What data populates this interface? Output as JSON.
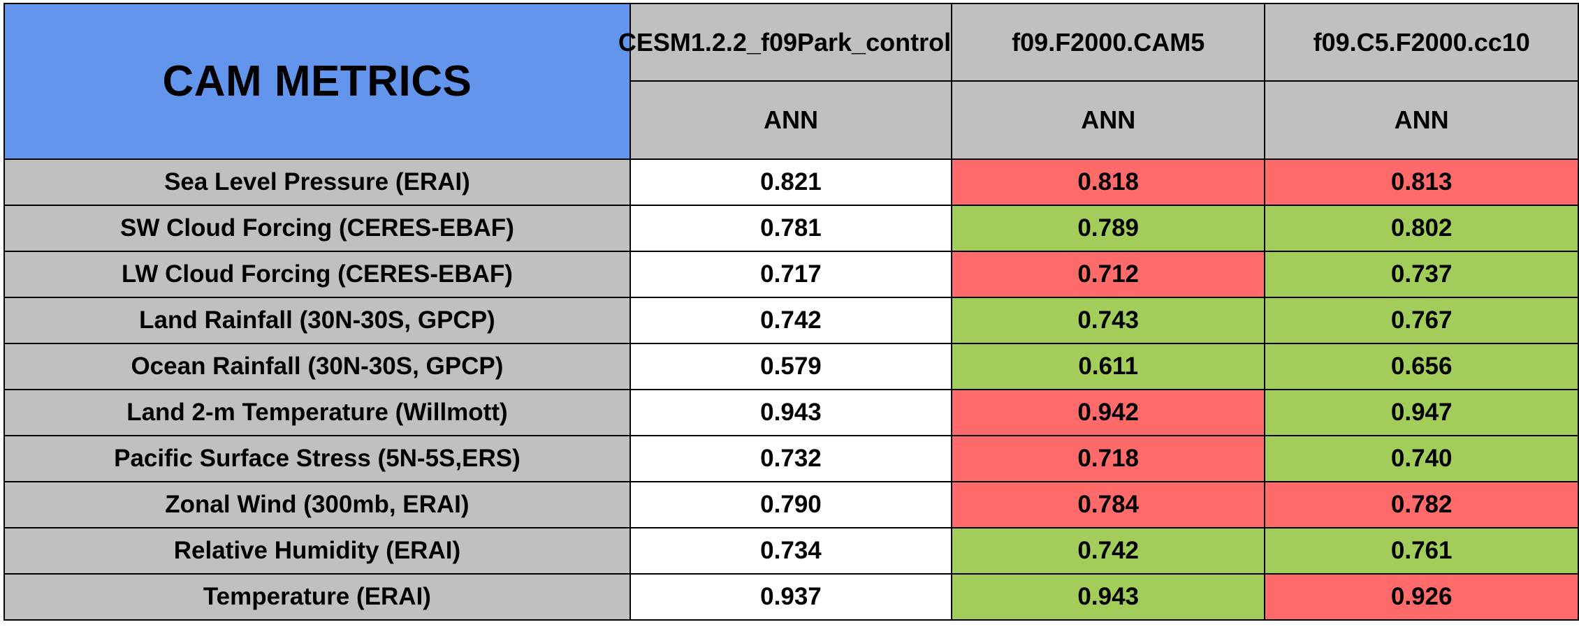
{
  "chart_data": {
    "type": "table",
    "title": "CAM METRICS",
    "colors": {
      "title_bg": "#6495ec",
      "header_bg": "#c0c0c0",
      "label_bg": "#c0c0c0",
      "baseline_bg": "#ffffff",
      "better_bg": "#a2cd5a",
      "worse_bg": "#ff6a6a"
    },
    "columns": [
      {
        "case": "CESM1.2.2_f09Park_control",
        "season": "ANN"
      },
      {
        "case": "f09.F2000.CAM5",
        "season": "ANN"
      },
      {
        "case": "f09.C5.F2000.cc10",
        "season": "ANN"
      }
    ],
    "rows": [
      {
        "label": "Sea Level Pressure (ERAI)",
        "values": [
          "0.821",
          "0.818",
          "0.813"
        ],
        "status": [
          "base",
          "worse",
          "worse"
        ]
      },
      {
        "label": "SW Cloud Forcing (CERES-EBAF)",
        "values": [
          "0.781",
          "0.789",
          "0.802"
        ],
        "status": [
          "base",
          "better",
          "better"
        ]
      },
      {
        "label": "LW Cloud Forcing (CERES-EBAF)",
        "values": [
          "0.717",
          "0.712",
          "0.737"
        ],
        "status": [
          "base",
          "worse",
          "better"
        ]
      },
      {
        "label": "Land Rainfall (30N-30S, GPCP)",
        "values": [
          "0.742",
          "0.743",
          "0.767"
        ],
        "status": [
          "base",
          "better",
          "better"
        ]
      },
      {
        "label": "Ocean Rainfall (30N-30S, GPCP)",
        "values": [
          "0.579",
          "0.611",
          "0.656"
        ],
        "status": [
          "base",
          "better",
          "better"
        ]
      },
      {
        "label": "Land 2-m Temperature (Willmott)",
        "values": [
          "0.943",
          "0.942",
          "0.947"
        ],
        "status": [
          "base",
          "worse",
          "better"
        ]
      },
      {
        "label": "Pacific Surface Stress (5N-5S,ERS)",
        "values": [
          "0.732",
          "0.718",
          "0.740"
        ],
        "status": [
          "base",
          "worse",
          "better"
        ]
      },
      {
        "label": "Zonal Wind (300mb, ERAI)",
        "values": [
          "0.790",
          "0.784",
          "0.782"
        ],
        "status": [
          "base",
          "worse",
          "worse"
        ]
      },
      {
        "label": "Relative Humidity (ERAI)",
        "values": [
          "0.734",
          "0.742",
          "0.761"
        ],
        "status": [
          "base",
          "better",
          "better"
        ]
      },
      {
        "label": "Temperature (ERAI)",
        "values": [
          "0.937",
          "0.943",
          "0.926"
        ],
        "status": [
          "base",
          "better",
          "worse"
        ]
      }
    ]
  }
}
